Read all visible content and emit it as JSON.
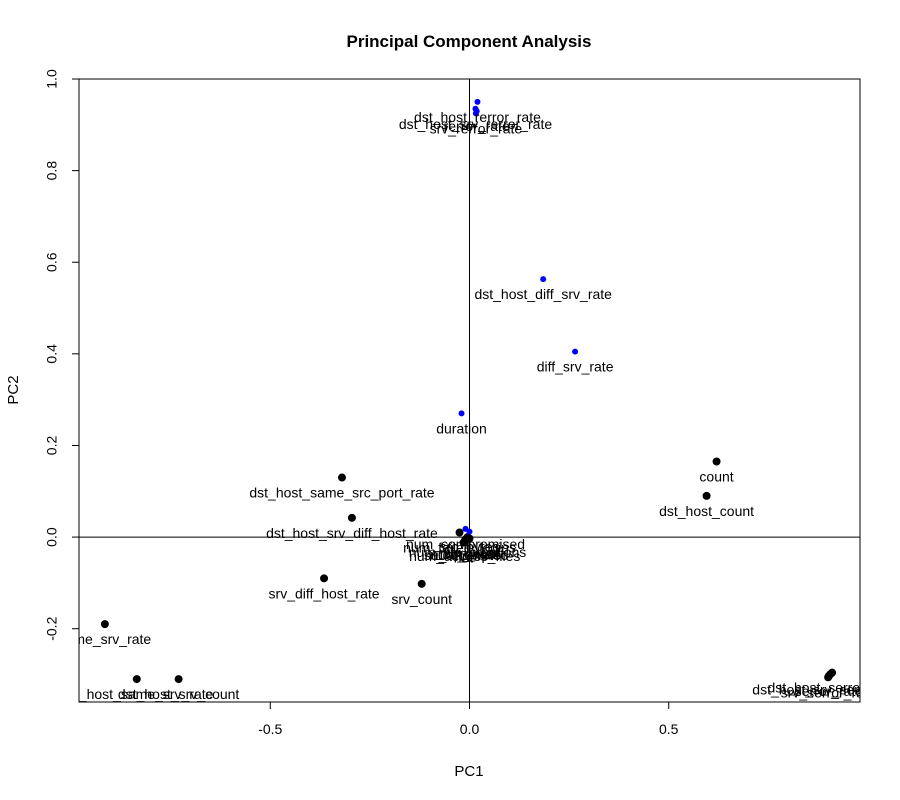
{
  "chart_data": {
    "type": "scatter",
    "title": "Principal Component Analysis",
    "xlabel": "PC1",
    "ylabel": "PC2",
    "xlim": [
      -0.98,
      0.98
    ],
    "ylim": [
      -0.36,
      1.0
    ],
    "xticks": [
      {
        "value": -0.5,
        "label": "-0.5"
      },
      {
        "value": 0.0,
        "label": "0.0"
      },
      {
        "value": 0.5,
        "label": "0.5"
      }
    ],
    "yticks": [
      {
        "value": -0.2,
        "label": "-0.2"
      },
      {
        "value": 0.0,
        "label": "0.0"
      },
      {
        "value": 0.2,
        "label": "0.2"
      },
      {
        "value": 0.4,
        "label": "0.4"
      },
      {
        "value": 0.6,
        "label": "0.6"
      },
      {
        "value": 0.8,
        "label": "0.8"
      },
      {
        "value": 1.0,
        "label": "1.0"
      }
    ],
    "reference_lines": {
      "x": 0,
      "y": 0
    },
    "colors": {
      "primary": "#000000",
      "secondary": "#0000ff"
    },
    "points": [
      {
        "label": "count",
        "x": 0.62,
        "y": 0.165,
        "group": "primary"
      },
      {
        "label": "dst_host_count",
        "x": 0.595,
        "y": 0.09,
        "group": "primary"
      },
      {
        "label": "dst_host_same_src_port_rate",
        "x": -0.32,
        "y": 0.13,
        "group": "primary"
      },
      {
        "label": "dst_host_srv_diff_host_rate",
        "x": -0.295,
        "y": 0.042,
        "group": "primary"
      },
      {
        "label": "srv_diff_host_rate",
        "x": -0.365,
        "y": -0.09,
        "group": "primary"
      },
      {
        "label": "srv_count",
        "x": -0.12,
        "y": -0.102,
        "group": "primary"
      },
      {
        "label": "same_srv_rate",
        "x": -0.915,
        "y": -0.19,
        "group": "primary"
      },
      {
        "label": "dst_host_same_srv_rate",
        "x": -0.835,
        "y": -0.31,
        "group": "primary"
      },
      {
        "label": "dst_host_srv_count",
        "x": -0.73,
        "y": -0.31,
        "group": "primary"
      },
      {
        "label": "dst_host_serror_rate",
        "x": 0.91,
        "y": -0.296,
        "group": "primary"
      },
      {
        "label": "dst_host_srv_serror_rate",
        "x": 0.905,
        "y": -0.3,
        "group": "primary"
      },
      {
        "label": "serror_rate",
        "x": 0.902,
        "y": -0.303,
        "group": "primary"
      },
      {
        "label": "srv_serror_rate",
        "x": 0.9,
        "y": -0.306,
        "group": "primary"
      },
      {
        "label": "num_failed_logins",
        "x": -0.025,
        "y": 0.01,
        "group": "primary"
      },
      {
        "label": "num_file_creations",
        "x": -0.005,
        "y": 0.0,
        "group": "primary"
      },
      {
        "label": "num_shells",
        "x": -0.01,
        "y": -0.005,
        "group": "primary"
      },
      {
        "label": "num_root",
        "x": 0.0,
        "y": -0.003,
        "group": "primary"
      },
      {
        "label": "num_access_files",
        "x": -0.012,
        "y": -0.008,
        "group": "primary"
      },
      {
        "label": "su_attempted",
        "x": -0.008,
        "y": -0.006,
        "group": "primary"
      },
      {
        "label": "root_shell",
        "x": -0.003,
        "y": -0.004,
        "group": "primary"
      },
      {
        "label": "hot",
        "x": -0.015,
        "y": -0.012,
        "group": "primary"
      },
      {
        "label": "dst_host_rerror_rate",
        "x": 0.02,
        "y": 0.95,
        "group": "secondary"
      },
      {
        "label": "dst_host_srv_rerror_rate",
        "x": 0.015,
        "y": 0.935,
        "group": "secondary"
      },
      {
        "label": "rerror_rate",
        "x": 0.018,
        "y": 0.93,
        "group": "secondary"
      },
      {
        "label": "srv_rerror_rate",
        "x": 0.016,
        "y": 0.925,
        "group": "secondary"
      },
      {
        "label": "dst_host_diff_srv_rate",
        "x": 0.185,
        "y": 0.563,
        "group": "secondary"
      },
      {
        "label": "diff_srv_rate",
        "x": 0.265,
        "y": 0.405,
        "group": "secondary"
      },
      {
        "label": "duration",
        "x": -0.02,
        "y": 0.27,
        "group": "secondary"
      },
      {
        "label": "num_compromised",
        "x": -0.01,
        "y": 0.018,
        "group": "secondary"
      },
      {
        "label": "src_bytes",
        "x": 0.0,
        "y": 0.012,
        "group": "secondary"
      }
    ]
  }
}
